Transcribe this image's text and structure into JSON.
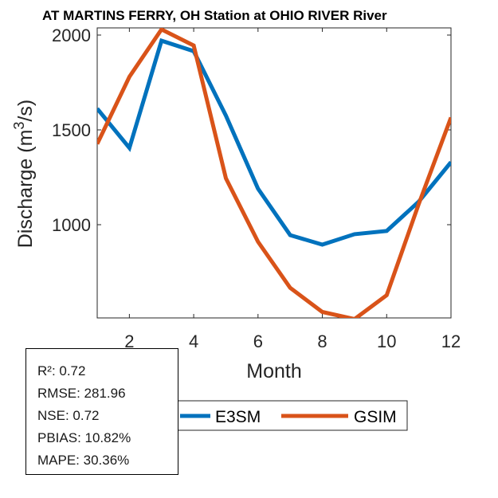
{
  "chart_data": {
    "type": "line",
    "title": "AT MARTINS FERRY, OH  Station at  OHIO RIVER  River",
    "xlabel": "Month",
    "ylabel": "Discharge (m³/s)",
    "ylabel_base": "Discharge (m",
    "ylabel_sup": "3",
    "ylabel_tail": "/s)",
    "xlim": [
      1,
      12
    ],
    "ylim": [
      500,
      2040
    ],
    "xticks": [
      2,
      4,
      6,
      8,
      10,
      12
    ],
    "yticks": [
      1000,
      1500,
      2000
    ],
    "grid": false,
    "legend_placement": "bottom-center",
    "x": [
      1,
      2,
      3,
      4,
      5,
      6,
      7,
      8,
      9,
      10,
      11,
      12
    ],
    "series": [
      {
        "name": "E3SM",
        "color": "#0072BD",
        "values": [
          1612,
          1405,
          1970,
          1915,
          1575,
          1190,
          945,
          895,
          950,
          967,
          1122,
          1330
        ]
      },
      {
        "name": "GSIM",
        "color": "#D95319",
        "values": [
          1426,
          1780,
          2030,
          1945,
          1245,
          910,
          667,
          540,
          502,
          628,
          1110,
          1565
        ]
      }
    ]
  },
  "stats": [
    "R²: 0.72",
    "RMSE: 281.96",
    "NSE: 0.72",
    "PBIAS: 10.82%",
    "MAPE: 30.36%"
  ]
}
